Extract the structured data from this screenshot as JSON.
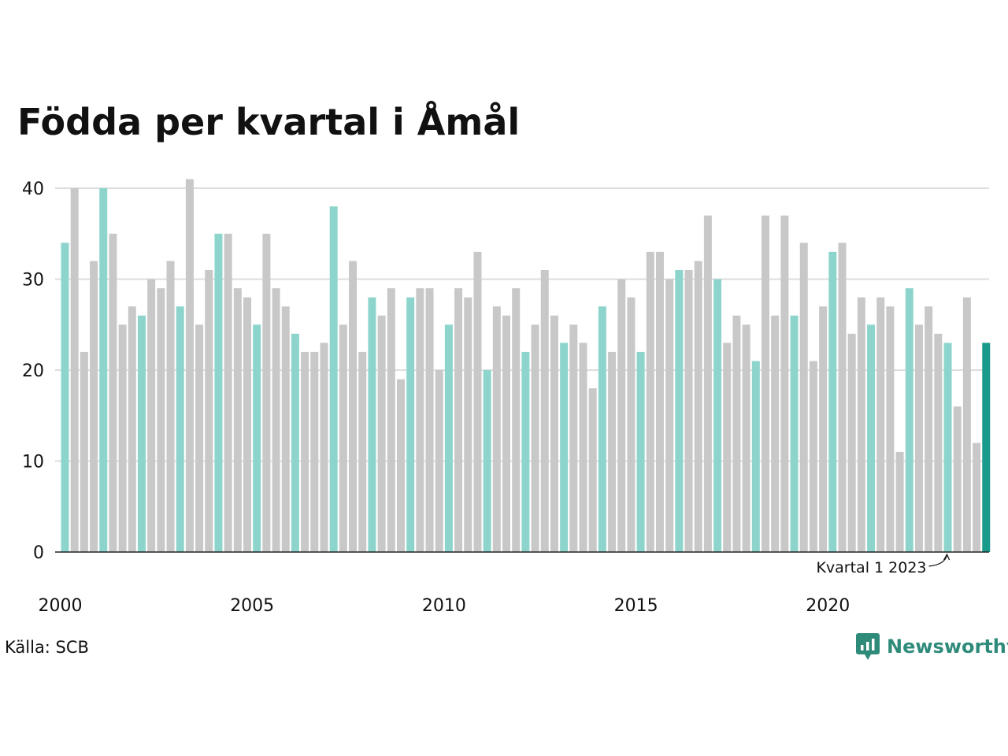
{
  "title": "Födda per kvartal i Åmål",
  "source": "Källa: SCB",
  "brand": "Newsworthy",
  "colors": {
    "q1": "#8dd5cc",
    "other": "#c8c8c8",
    "latest": "#1a9a8a",
    "grid": "#dddddd",
    "axis": "#222222",
    "brand": "#2e8b7a"
  },
  "chart_data": {
    "type": "bar",
    "title": "Födda per kvartal i Åmål",
    "xlabel": "",
    "ylabel": "",
    "ylim": [
      0,
      40
    ],
    "yticks": [
      0,
      10,
      20,
      30,
      40
    ],
    "xticks": [
      "2000",
      "2005",
      "2010",
      "2015",
      "2020"
    ],
    "grid": true,
    "first_period": "2000 Q1",
    "values": [
      34,
      40,
      22,
      32,
      40,
      35,
      25,
      27,
      26,
      30,
      29,
      32,
      27,
      41,
      25,
      31,
      35,
      35,
      29,
      28,
      25,
      35,
      29,
      27,
      24,
      22,
      22,
      23,
      38,
      25,
      32,
      22,
      28,
      26,
      29,
      19,
      28,
      29,
      29,
      20,
      25,
      29,
      28,
      33,
      20,
      27,
      26,
      29,
      22,
      25,
      31,
      26,
      23,
      25,
      23,
      18,
      27,
      22,
      30,
      28,
      22,
      33,
      33,
      30,
      31,
      31,
      32,
      37,
      30,
      23,
      26,
      25,
      21,
      37,
      26,
      37,
      26,
      34,
      21,
      27,
      33,
      34,
      24,
      28,
      25,
      28,
      27,
      11,
      29,
      25,
      27,
      24,
      23,
      16,
      28,
      12,
      23
    ],
    "annotation": {
      "text": "Kvartal 1 2023",
      "period": "2023 Q1"
    }
  }
}
